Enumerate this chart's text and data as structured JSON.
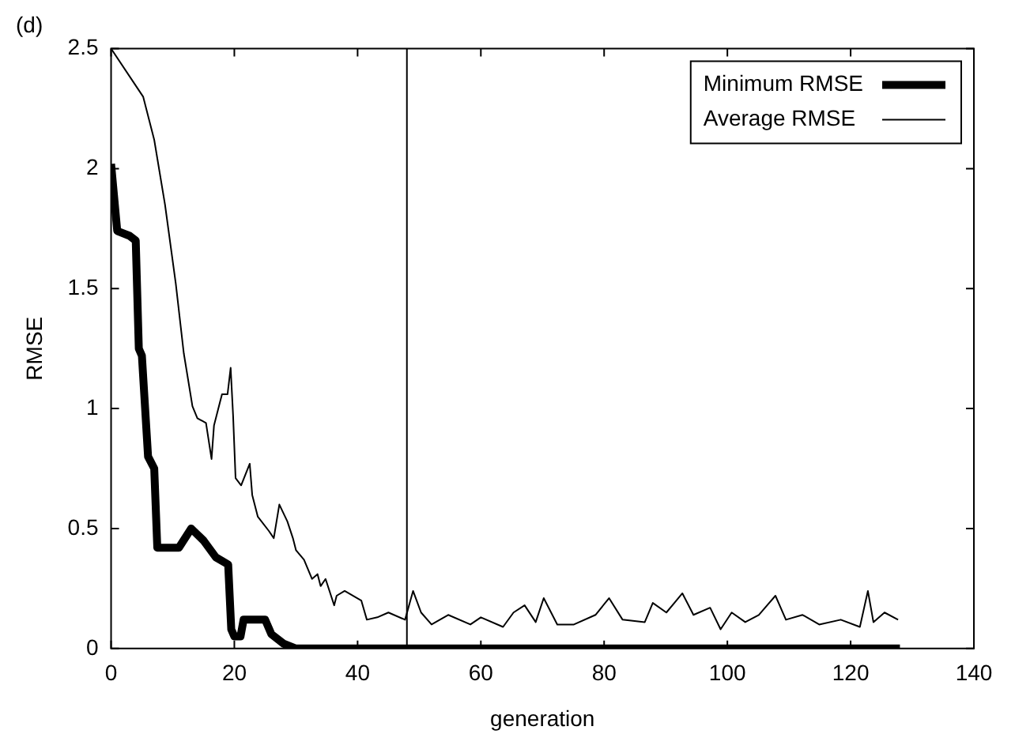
{
  "chart_data": {
    "type": "line",
    "title": "(d)",
    "xlabel": "generation",
    "ylabel": "RMSE",
    "xlim": [
      0,
      140
    ],
    "xticks": [
      0,
      20,
      40,
      60,
      80,
      100,
      120,
      140
    ],
    "ylim": [
      0,
      2.5
    ],
    "yticks": [
      0,
      0.5,
      1,
      1.5,
      2,
      2.5
    ],
    "grid": false,
    "legend": "top right",
    "marker": "none",
    "ref_lines": [
      {
        "axis": "x",
        "value": 48,
        "color": "#000000"
      }
    ],
    "series": [
      {
        "name": "Minimum RMSE",
        "color": "#000000",
        "x": [
          0,
          1,
          3,
          4,
          4.5,
          5,
          6,
          7,
          7.5,
          8,
          11,
          13,
          15,
          17,
          19,
          19.5,
          20,
          21,
          21.5,
          25,
          26,
          28,
          30,
          128
        ],
        "values": [
          2.02,
          1.74,
          1.72,
          1.7,
          1.25,
          1.22,
          0.8,
          0.75,
          0.42,
          0.42,
          0.42,
          0.5,
          0.45,
          0.38,
          0.35,
          0.08,
          0.05,
          0.05,
          0.12,
          0.12,
          0.06,
          0.02,
          0,
          0
        ]
      },
      {
        "name": "Average RMSE",
        "color": "#000000",
        "x": [
          0,
          5.2,
          7,
          8.75,
          10.5,
          11.8,
          13.2,
          14,
          15.4,
          16.3,
          16.7,
          18,
          18.9,
          19.4,
          19.8,
          20.2,
          21.1,
          22.5,
          22.9,
          23.8,
          25.6,
          26.4,
          27.3,
          28.6,
          29.5,
          30,
          31.3,
          32.6,
          33.5,
          34,
          34.8,
          36.2,
          36.6,
          37.9,
          40.6,
          41.5,
          43.2,
          45,
          47.7,
          49,
          50.3,
          52,
          54.7,
          58.3,
          60,
          63.6,
          65.3,
          67.1,
          68.9,
          70.2,
          72.4,
          75.1,
          78.6,
          80.8,
          83,
          86.6,
          87.9,
          90.1,
          92.7,
          94.5,
          97.2,
          98.9,
          100.7,
          102.9,
          105.1,
          107.8,
          109.5,
          112.2,
          114.9,
          118.4,
          121.5,
          122.8,
          123.7,
          125.5,
          127.7
        ],
        "values": [
          2.5,
          2.3,
          2.12,
          1.85,
          1.52,
          1.23,
          1.01,
          0.96,
          0.94,
          0.79,
          0.93,
          1.06,
          1.06,
          1.17,
          0.97,
          0.71,
          0.68,
          0.77,
          0.64,
          0.55,
          0.49,
          0.46,
          0.6,
          0.53,
          0.46,
          0.41,
          0.37,
          0.29,
          0.31,
          0.26,
          0.29,
          0.18,
          0.22,
          0.24,
          0.2,
          0.12,
          0.13,
          0.15,
          0.12,
          0.24,
          0.15,
          0.1,
          0.14,
          0.1,
          0.13,
          0.09,
          0.15,
          0.18,
          0.11,
          0.21,
          0.1,
          0.1,
          0.14,
          0.21,
          0.12,
          0.11,
          0.19,
          0.15,
          0.23,
          0.14,
          0.17,
          0.08,
          0.15,
          0.11,
          0.14,
          0.22,
          0.12,
          0.14,
          0.1,
          0.12,
          0.09,
          0.24,
          0.11,
          0.15,
          0.12
        ]
      }
    ]
  }
}
